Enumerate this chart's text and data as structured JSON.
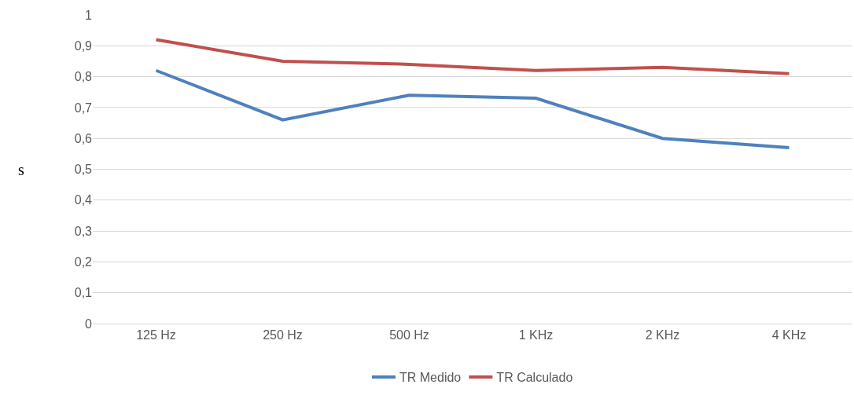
{
  "chart_data": {
    "type": "line",
    "ylabel": "s",
    "categories": [
      "125 Hz",
      "250 Hz",
      "500 Hz",
      "1 KHz",
      "2 KHz",
      "4 KHz"
    ],
    "series": [
      {
        "name": "TR Medido",
        "color": "#4f81bd",
        "values": [
          0.82,
          0.66,
          0.74,
          0.73,
          0.6,
          0.57
        ]
      },
      {
        "name": "TR Calculado",
        "color": "#c0504d",
        "values": [
          0.92,
          0.85,
          0.84,
          0.82,
          0.83,
          0.81
        ]
      }
    ],
    "ylim": [
      0,
      1
    ],
    "yticks": [
      0,
      {
        "value": 0.1,
        "label": "0,1"
      },
      {
        "value": 0.2,
        "label": "0,2"
      },
      {
        "value": 0.3,
        "label": "0,3"
      },
      {
        "value": 0.4,
        "label": "0,4"
      },
      {
        "value": 0.5,
        "label": "0,5"
      },
      {
        "value": 0.6,
        "label": "0,6"
      },
      {
        "value": 0.7,
        "label": "0,7"
      },
      {
        "value": 0.8,
        "label": "0,8"
      },
      {
        "value": 0.9,
        "label": "0,9"
      },
      1
    ],
    "grid": "y",
    "legend": "bottom",
    "marker": "none",
    "line_style": "solid"
  }
}
